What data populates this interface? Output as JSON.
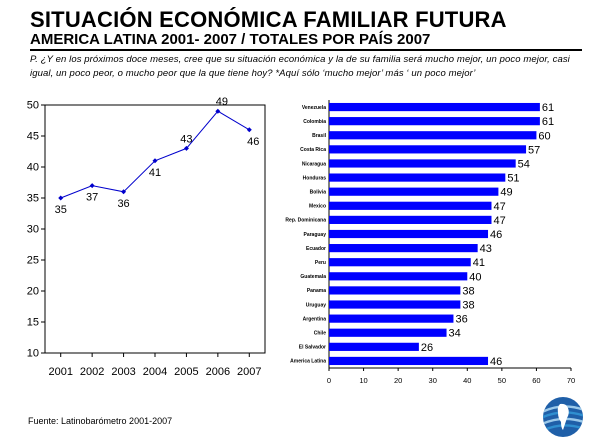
{
  "header": {
    "title": "SITUACIÓN ECONÓMICA FAMILIAR FUTURA",
    "subtitle": "AMERICA LATINA 2001- 2007 / TOTALES POR PAÍS 2007",
    "question": "P. ¿Y en los próximos doce meses, cree que su situación económica y la de su familia será mucho mejor, un poco mejor, casi igual, un poco peor, o mucho peor que la que tiene hoy? *Aquí sólo ‘mucho mejor’ más ‘ un poco mejor’"
  },
  "footer": {
    "source": "Fuente: Latinobarómetro 2001-2007"
  },
  "logo": {
    "icon": "latinobarometro-globe-icon",
    "colors": [
      "#1f5fa8",
      "#2f8fd0",
      "#9bc9ea"
    ]
  },
  "chart_data": [
    {
      "type": "line",
      "x": [
        "2001",
        "2002",
        "2003",
        "2004",
        "2005",
        "2006",
        "2007"
      ],
      "series": [
        {
          "values": [
            35,
            37,
            36,
            41,
            43,
            49,
            46
          ]
        }
      ],
      "ylim": [
        10,
        50
      ],
      "yticks": [
        10,
        15,
        20,
        25,
        30,
        35,
        40,
        45,
        50
      ],
      "color": "#0000cc",
      "grid": false
    },
    {
      "type": "bar",
      "orientation": "horizontal",
      "categories": [
        "Venezuela",
        "Colombia",
        "Brasil",
        "Costa Rica",
        "Nicaragua",
        "Honduras",
        "Bolivia",
        "Mexico",
        "Rep. Dominicana",
        "Paraguay",
        "Ecuador",
        "Peru",
        "Guatemala",
        "Panama",
        "Uruguay",
        "Argentina",
        "Chile",
        "El Salvador",
        "America Latina"
      ],
      "values": [
        61,
        61,
        60,
        57,
        54,
        51,
        49,
        47,
        47,
        46,
        43,
        41,
        40,
        38,
        38,
        36,
        34,
        26,
        46
      ],
      "xlim": [
        0,
        70
      ],
      "xticks": [
        0,
        10,
        20,
        30,
        40,
        50,
        60,
        70
      ],
      "color": "#0000ff",
      "grid": false
    }
  ]
}
